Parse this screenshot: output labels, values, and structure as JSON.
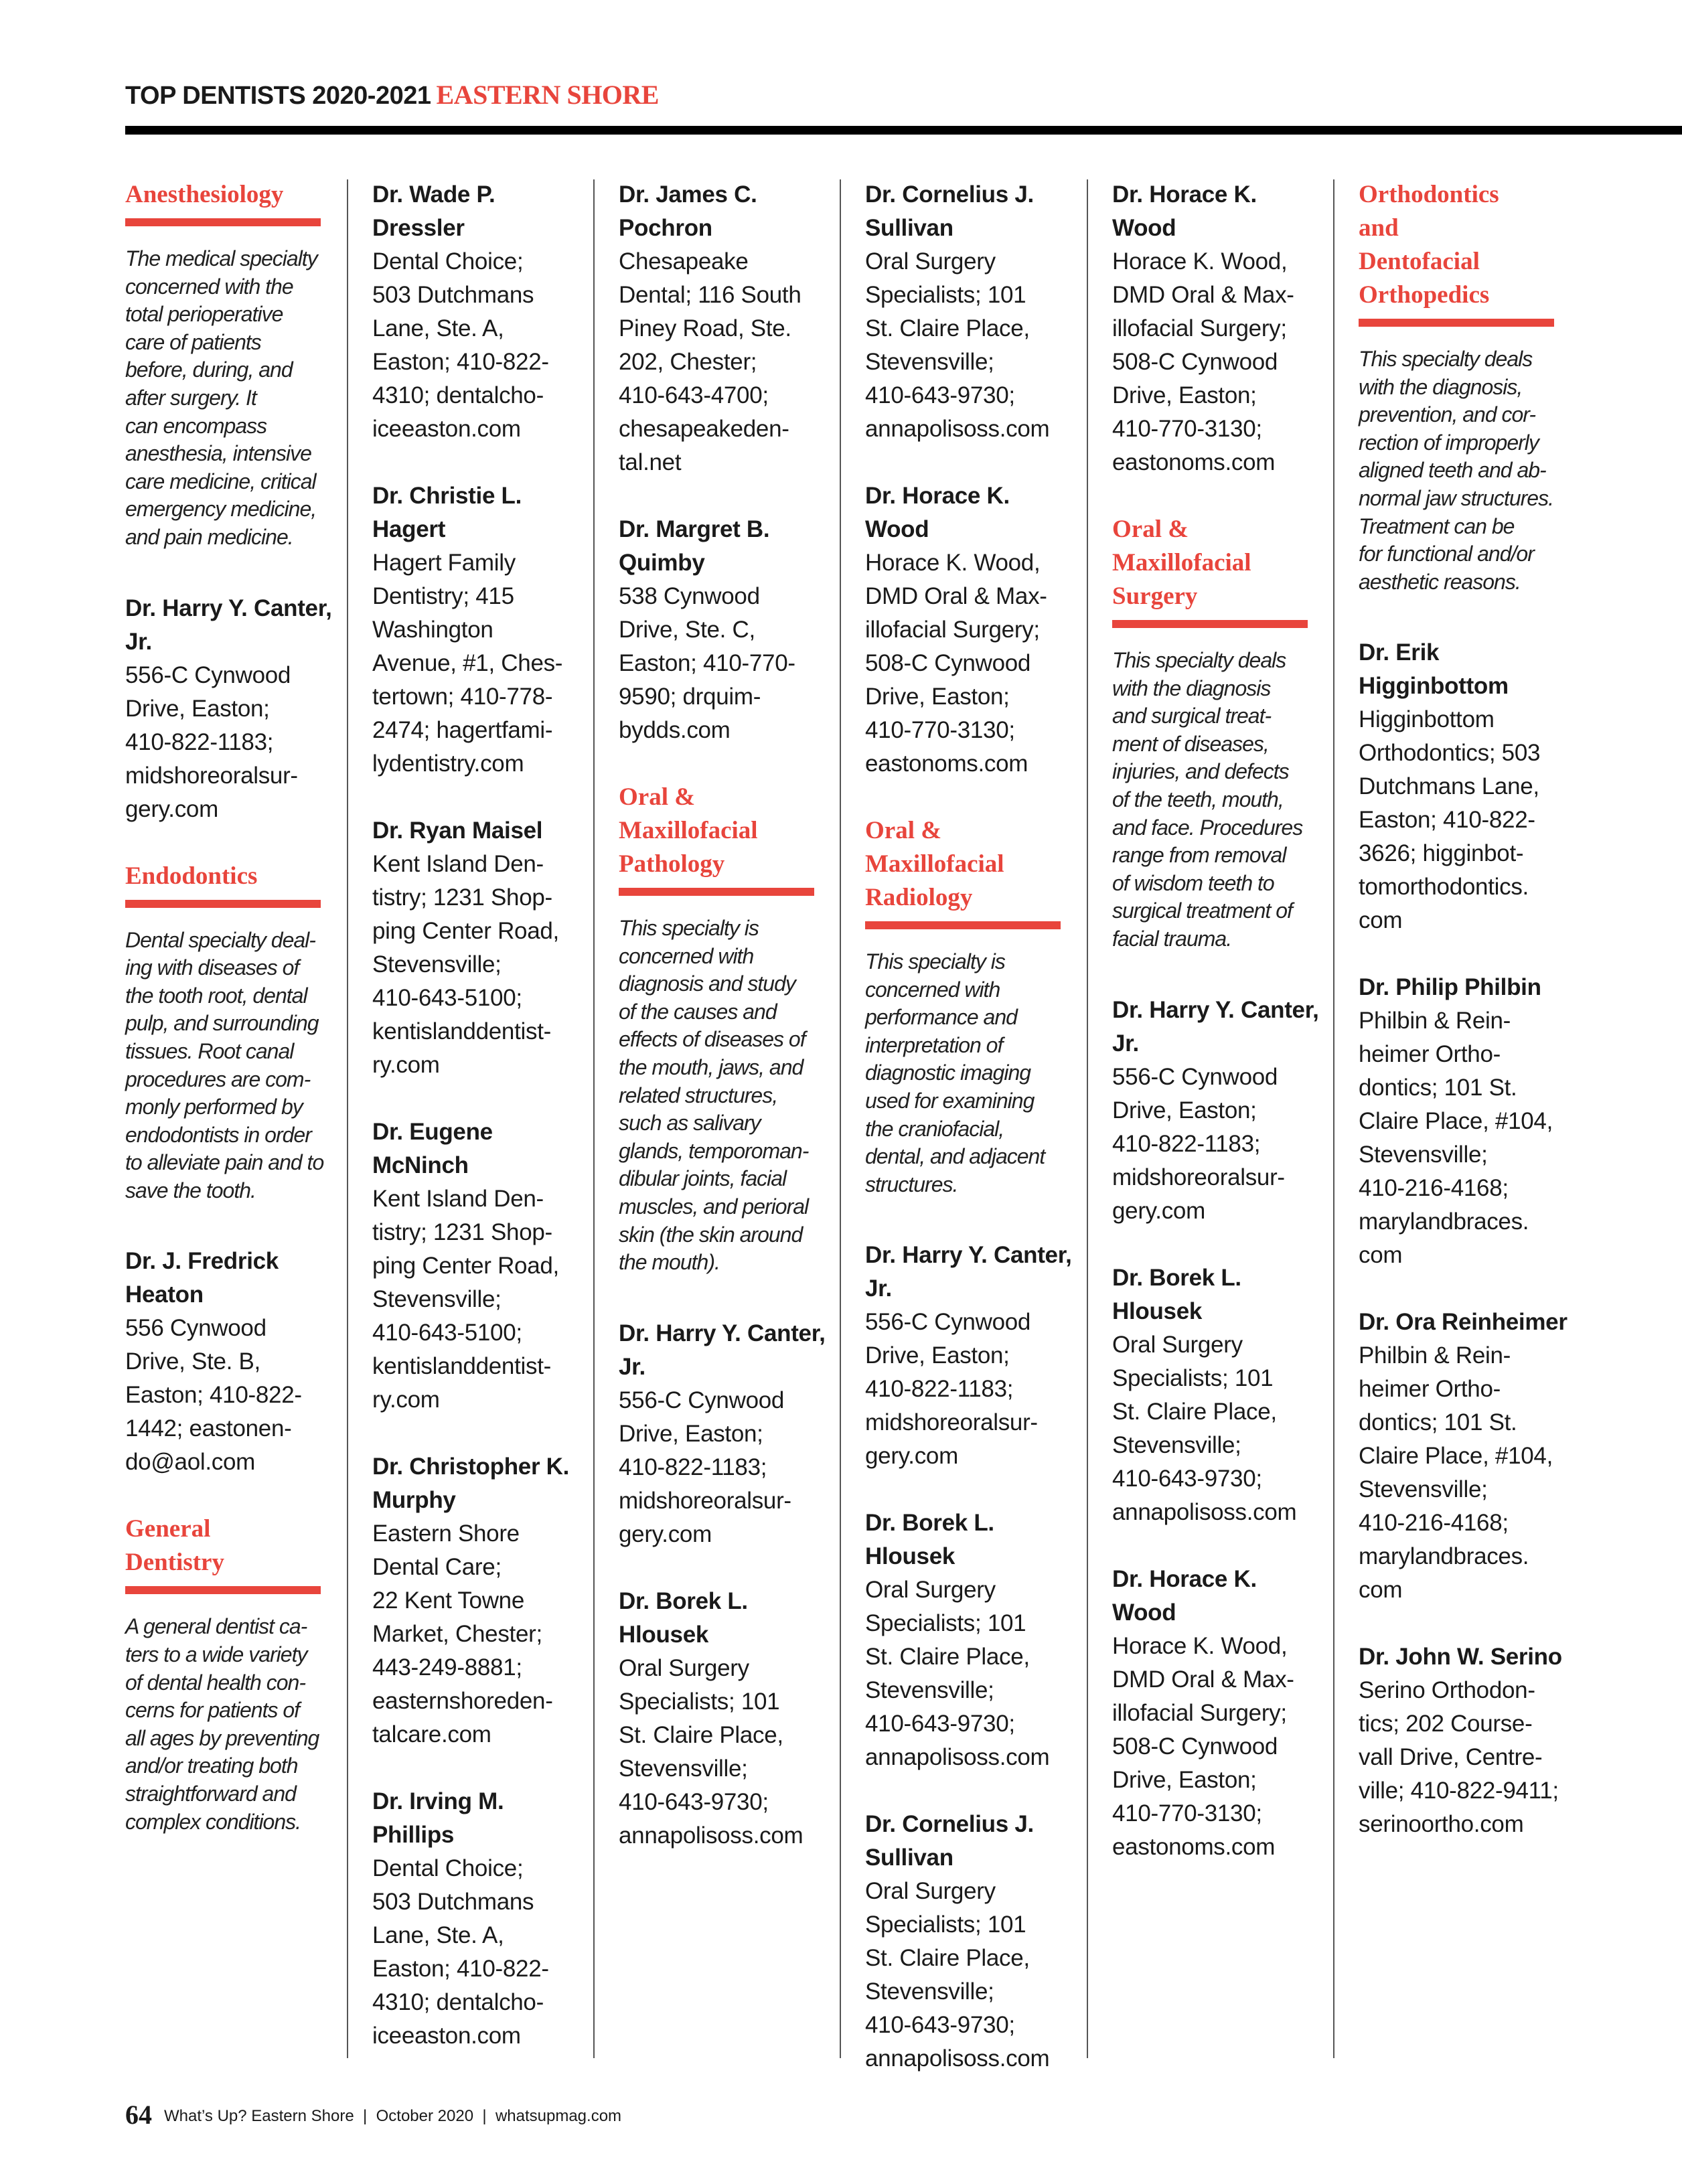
{
  "header": {
    "title": "TOP DENTISTS 2020-2021",
    "region": "EASTERN SHORE"
  },
  "colors": {
    "accent": "#e8453c",
    "text": "#1a1a1a"
  },
  "footer": {
    "page_number": "64",
    "text": "What’s Up? Eastern Shore  |  October 2020  |  whatsupmag.com"
  },
  "columns": [
    [
      {
        "type": "section",
        "heading": "Anesthesiology",
        "desc": "The medical specialty\nconcerned with the\ntotal perioperative\ncare of patients\nbefore, during, and\nafter surgery. It\ncan encompass\nanesthesia, intensive\ncare medicine, critical\nemergency medicine,\nand pain medicine."
      },
      {
        "type": "entry",
        "name": "Dr. Harry Y. Canter,\nJr.",
        "body": "556-C Cynwood\nDrive, Easton;\n410-822-1183;\nmidshoreoralsur-\ngery.com"
      },
      {
        "type": "section",
        "heading": "Endodontics",
        "desc": "Dental specialty deal-\ning with diseases of\nthe tooth root, dental\npulp, and surrounding\ntissues. Root canal\nprocedures are com-\nmonly performed by\nendodontists in order\nto alleviate pain and to\nsave the tooth."
      },
      {
        "type": "entry",
        "name": "Dr. J. Fredrick\nHeaton",
        "body": "556 Cynwood\nDrive, Ste. B,\nEaston; 410-822-\n1442; eastonen-\ndo@aol.com"
      },
      {
        "type": "section",
        "heading": "General\nDentistry",
        "desc": "A general dentist ca-\nters to a wide variety\nof dental health con-\ncerns for patients of\nall ages by preventing\nand/or treating both\nstraightforward and\ncomplex conditions."
      }
    ],
    [
      {
        "type": "entry",
        "name": "Dr. Wade P.\nDressler",
        "body": "Dental Choice;\n503 Dutchmans\nLane, Ste. A,\nEaston; 410-822-\n4310; dentalcho-\niceeaston.com"
      },
      {
        "type": "entry",
        "name": "Dr. Christie L.\nHagert",
        "body": "Hagert Family\nDentistry; 415\nWashington\nAvenue, #1, Ches-\ntertown; 410-778-\n2474; hagertfami-\nlydentistry.com"
      },
      {
        "type": "entry",
        "name": "Dr. Ryan Maisel",
        "body": "Kent Island Den-\ntistry; 1231 Shop-\nping Center Road,\nStevensville;\n410-643-5100;\nkentislanddentist-\nry.com"
      },
      {
        "type": "entry",
        "name": "Dr. Eugene\nMcNinch",
        "body": "Kent Island Den-\ntistry; 1231 Shop-\nping Center Road,\nStevensville;\n410-643-5100;\nkentislanddentist-\nry.com"
      },
      {
        "type": "entry",
        "name": "Dr. Christopher K.\nMurphy",
        "body": "Eastern Shore\nDental Care;\n22 Kent Towne\nMarket, Chester;\n443-249-8881;\neasternshoreden-\ntalcare.com"
      },
      {
        "type": "entry",
        "name": "Dr. Irving M.\nPhillips",
        "body": "Dental Choice;\n503 Dutchmans\nLane, Ste. A,\nEaston; 410-822-\n4310; dentalcho-\niceeaston.com"
      }
    ],
    [
      {
        "type": "entry",
        "name": "Dr. James C.\nPochron",
        "body": "Chesapeake\nDental; 116 South\nPiney Road, Ste.\n202, Chester;\n410-643-4700;\nchesapeakeden-\ntal.net"
      },
      {
        "type": "entry",
        "name": "Dr. Margret B.\nQuimby",
        "body": "538 Cynwood\nDrive, Ste. C,\nEaston; 410-770-\n9590; drquim-\nbydds.com"
      },
      {
        "type": "section",
        "heading": "Oral &\nMaxillofacial\nPathology",
        "desc": "This specialty is\nconcerned with\ndiagnosis and study\nof the causes and\neffects of diseases of\nthe mouth, jaws, and\nrelated structures,\nsuch as salivary\nglands, temporoman-\ndibular joints, facial\nmuscles, and perioral\nskin (the skin around\nthe mouth)."
      },
      {
        "type": "entry",
        "name": "Dr. Harry Y. Canter,\nJr.",
        "body": "556-C Cynwood\nDrive, Easton;\n410-822-1183;\nmidshoreoralsur-\ngery.com"
      },
      {
        "type": "entry",
        "name": "Dr. Borek L.\nHlousek",
        "body": "Oral Surgery\nSpecialists; 101\nSt. Claire Place,\nStevensville;\n410-643-9730;\nannapolisoss.com"
      }
    ],
    [
      {
        "type": "entry",
        "name": "Dr. Cornelius J.\nSullivan",
        "body": "Oral Surgery\nSpecialists; 101\nSt. Claire Place,\nStevensville;\n410-643-9730;\nannapolisoss.com"
      },
      {
        "type": "entry",
        "name": "Dr. Horace K. Wood",
        "body": "Horace K. Wood,\nDMD Oral & Max-\nillofacial Surgery;\n508-C Cynwood\nDrive, Easton;\n410-770-3130;\neastonoms.com"
      },
      {
        "type": "section",
        "heading": "Oral &\nMaxillofacial\nRadiology",
        "desc": "This specialty is\nconcerned with\nperformance and\ninterpretation of\ndiagnostic imaging\nused for examining\nthe craniofacial,\ndental, and adjacent\nstructures."
      },
      {
        "type": "entry",
        "name": "Dr. Harry Y. Canter,\nJr.",
        "body": "556-C Cynwood\nDrive, Easton;\n410-822-1183;\nmidshoreoralsur-\ngery.com"
      },
      {
        "type": "entry",
        "name": "Dr. Borek L.\nHlousek",
        "body": "Oral Surgery\nSpecialists; 101\nSt. Claire Place,\nStevensville;\n410-643-9730;\nannapolisoss.com"
      },
      {
        "type": "entry",
        "name": "Dr. Cornelius J.\nSullivan",
        "body": "Oral Surgery\nSpecialists; 101\nSt. Claire Place,\nStevensville;\n410-643-9730;\nannapolisoss.com"
      }
    ],
    [
      {
        "type": "entry",
        "name": "Dr. Horace K. Wood",
        "body": "Horace K. Wood,\nDMD Oral & Max-\nillofacial Surgery;\n508-C Cynwood\nDrive, Easton;\n410-770-3130;\neastonoms.com"
      },
      {
        "type": "section",
        "heading": "Oral &\nMaxillofacial\nSurgery",
        "desc": "This specialty deals\nwith the diagnosis\nand surgical treat-\nment of diseases,\ninjuries, and defects\nof the teeth, mouth,\nand face. Procedures\nrange from removal\nof wisdom teeth to\nsurgical treatment of\nfacial trauma."
      },
      {
        "type": "entry",
        "name": "Dr. Harry Y. Canter,\nJr.",
        "body": "556-C Cynwood\nDrive, Easton;\n410-822-1183;\nmidshoreoralsur-\ngery.com"
      },
      {
        "type": "entry",
        "name": "Dr. Borek L.\nHlousek",
        "body": "Oral Surgery\nSpecialists; 101\nSt. Claire Place,\nStevensville;\n410-643-9730;\nannapolisoss.com"
      },
      {
        "type": "entry",
        "name": "Dr. Horace K. Wood",
        "body": "Horace K. Wood,\nDMD Oral & Max-\nillofacial Surgery;\n508-C Cynwood\nDrive, Easton;\n410-770-3130;\neastonoms.com"
      }
    ],
    [
      {
        "type": "section",
        "heading": "Orthodontics\nand\nDentofacial\nOrthopedics",
        "desc": "This specialty deals\nwith the diagnosis,\nprevention, and cor-\nrection of improperly\naligned teeth and ab-\nnormal jaw structures.\nTreatment can be\nfor functional and/or\naesthetic reasons."
      },
      {
        "type": "entry",
        "name": "Dr. Erik\nHigginbottom",
        "body": "Higginbottom\nOrthodontics; 503\nDutchmans Lane,\nEaston; 410-822-\n3626; higginbot-\ntomorthodontics.\ncom"
      },
      {
        "type": "entry",
        "name": "Dr. Philip Philbin",
        "body": "Philbin & Rein-\nheimer Ortho-\ndontics; 101 St.\nClaire Place, #104,\nStevensville;\n410-216-4168;\nmarylandbraces.\ncom"
      },
      {
        "type": "entry",
        "name": "Dr. Ora Reinheimer",
        "body": "Philbin & Rein-\nheimer Ortho-\ndontics; 101 St.\nClaire Place, #104,\nStevensville;\n410-216-4168;\nmarylandbraces.\ncom"
      },
      {
        "type": "entry",
        "name": "Dr. John W. Serino",
        "body": "Serino Orthodon-\ntics; 202 Course-\nvall Drive, Centre-\nville; 410-822-9411;\nserinoortho.com"
      }
    ]
  ]
}
